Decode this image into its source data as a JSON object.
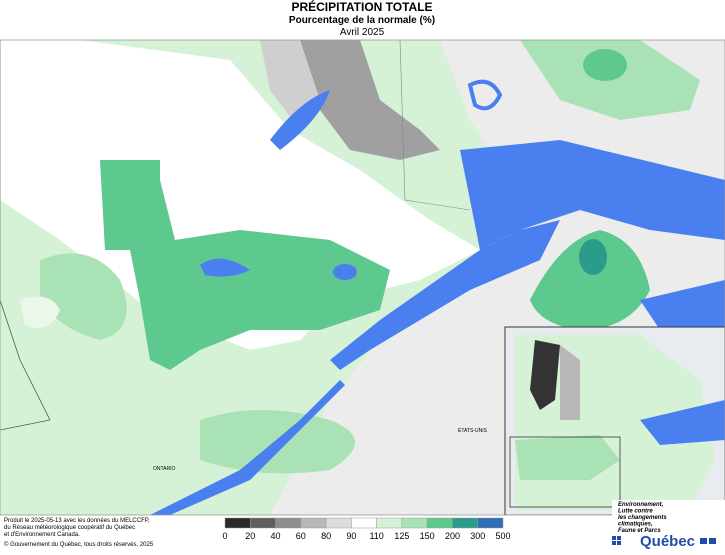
{
  "header": {
    "title": "PRÉCIPITATION TOTALE",
    "subtitle": "Pourcentage de la normale (%)",
    "date": "Avril 2025"
  },
  "map_labels": {
    "ontario": "ONTARIO",
    "usa": "ÉTATS-UNIS"
  },
  "legend": {
    "labels": [
      0,
      20,
      40,
      60,
      80,
      90,
      110,
      125,
      150,
      200,
      300,
      500
    ],
    "colors": [
      "#2a2a2a",
      "#5e5e5e",
      "#8e8e8e",
      "#b8b8b8",
      "#dcdcdc",
      "#ffffff",
      "#d6f2d6",
      "#a9e3b5",
      "#5ec98e",
      "#2b9b8a",
      "#2f6fb5",
      "#2323c8"
    ]
  },
  "credits": [
    "Produit le 2025-05-13 avec les données du MELCCFP,",
    "du Réseau météorologique coopératif du Québec",
    "et d'Environnement Canada.",
    "© Gouvernement du Québec, tous droits réservés, 2025"
  ],
  "logo": {
    "lines": [
      "Environnement,",
      "Lutte contre",
      "les changements",
      "climatiques,",
      "Faune et Parcs"
    ],
    "name": "Québec"
  }
}
